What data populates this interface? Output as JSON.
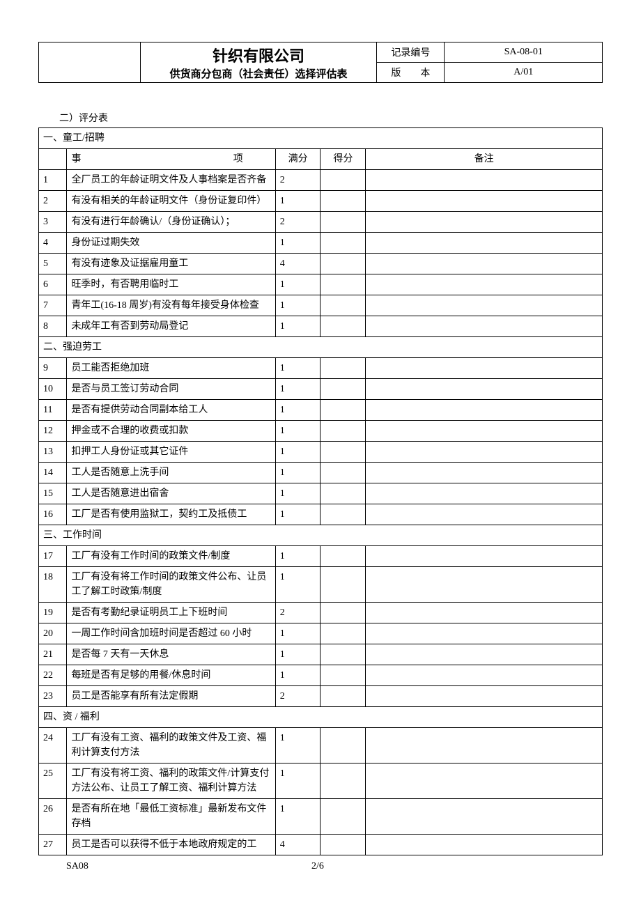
{
  "header": {
    "title": "针织有限公司",
    "subtitle": "供货商分包商（社会责任）选择评估表",
    "record_label": "记录编号",
    "record_value": "SA-08-01",
    "version_label": "版　　本",
    "version_value": "A/01"
  },
  "scoring_title": "二）评分表",
  "columns": {
    "item": "事项",
    "full": "满分",
    "score": "得分",
    "note": "备注"
  },
  "sections": [
    {
      "title": "一、童工/招聘",
      "rows": [
        {
          "num": "1",
          "item": "全厂员工的年龄证明文件及人事档案是否齐备",
          "full": "2"
        },
        {
          "num": "2",
          "item": "有没有相关的年龄证明文件（身份证复印件）",
          "full": "1"
        },
        {
          "num": "3",
          "item": "有没有进行年龄确认/（身份证确认）；",
          "full": "2"
        },
        {
          "num": "4",
          "item": "身份证过期失效",
          "full": "1"
        },
        {
          "num": "5",
          "item": "有没有迹象及证据雇用童工",
          "full": "4"
        },
        {
          "num": "6",
          "item": "旺季时，有否聘用临时工",
          "full": "1"
        },
        {
          "num": "7",
          "item": "青年工(16-18 周岁)有没有每年接受身体检查",
          "full": "1"
        },
        {
          "num": "8",
          "item": "未成年工有否到劳动局登记",
          "full": "1"
        }
      ]
    },
    {
      "title": "二、强迫劳工",
      "rows": [
        {
          "num": "9",
          "item": "员工能否拒绝加班",
          "full": "1"
        },
        {
          "num": "10",
          "item": "是否与员工签订劳动合同",
          "full": "1"
        },
        {
          "num": "11",
          "item": "是否有提供劳动合同副本给工人",
          "full": "1"
        },
        {
          "num": "12",
          "item": "押金或不合理的收费或扣款",
          "full": "1"
        },
        {
          "num": "13",
          "item": "扣押工人身份证或其它证件",
          "full": "1"
        },
        {
          "num": "14",
          "item": "工人是否随意上洗手间",
          "full": "1"
        },
        {
          "num": "15",
          "item": "工人是否随意进出宿舍",
          "full": "1"
        },
        {
          "num": "16",
          "item": "工厂是否有使用监狱工，契约工及抵债工",
          "full": "1"
        }
      ]
    },
    {
      "title": "三、工作时间",
      "rows": [
        {
          "num": "17",
          "item": "工厂有没有工作时间的政策文件/制度",
          "full": "1"
        },
        {
          "num": "18",
          "item": "工厂有没有将工作时间的政策文件公布、让员工了解工时政策/制度",
          "full": "1"
        },
        {
          "num": "19",
          "item": "是否有考勤纪录证明员工上下班时间",
          "full": "2"
        },
        {
          "num": "20",
          "item": "一周工作时间含加班时间是否超过 60 小时",
          "full": "1"
        },
        {
          "num": "21",
          "item": "是否每 7 天有一天休息",
          "full": "1"
        },
        {
          "num": "22",
          "item": "每班是否有足够的用餐/休息时间",
          "full": "1"
        },
        {
          "num": "23",
          "item": "员工是否能享有所有法定假期",
          "full": "2"
        }
      ]
    },
    {
      "title": "四、资 / 福利",
      "rows": [
        {
          "num": "24",
          "item": "工厂有没有工资、福利的政策文件及工资、福利计算支付方法",
          "full": "1"
        },
        {
          "num": "25",
          "item": "工厂有没有将工资、福利的政策文件/计算支付方法公布、让员工了解工资、福利计算方法",
          "full": "1"
        },
        {
          "num": "26",
          "item": "是否有所在地「最低工资标准」最新发布文件存档",
          "full": "1"
        },
        {
          "num": "27",
          "item": "员工是否可以获得不低于本地政府规定的工",
          "full": "4"
        }
      ]
    }
  ],
  "footer": {
    "left": "SA08",
    "page": "2/6"
  }
}
